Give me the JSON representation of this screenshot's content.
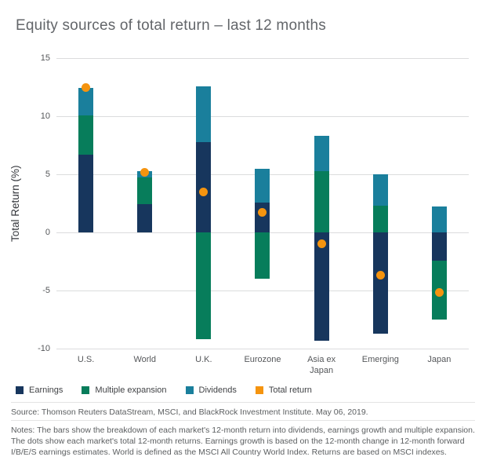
{
  "title": "Equity sources of total return – last 12 months",
  "chart_data": {
    "type": "bar",
    "stacked": true,
    "title": "Equity sources of total return – last 12 months",
    "ylabel": "Total Return (%)",
    "ylim": [
      -10,
      15
    ],
    "yticks": [
      15,
      10,
      5,
      0,
      -5,
      -10
    ],
    "grid": true,
    "legend_position": "bottom",
    "categories": [
      "U.S.",
      "World",
      "U.K.",
      "Eurozone",
      "Asia ex\nJapan",
      "Emerging",
      "Japan"
    ],
    "series": [
      {
        "name": "Earnings",
        "color": "#17365d",
        "values": [
          6.7,
          2.4,
          7.8,
          2.6,
          -9.3,
          -8.7,
          -2.4
        ]
      },
      {
        "name": "Multiple expansion",
        "color": "#077d5b",
        "values": [
          3.4,
          2.3,
          -9.2,
          -4.0,
          5.3,
          2.3,
          -5.1
        ]
      },
      {
        "name": "Dividends",
        "color": "#1a7f9c",
        "values": [
          2.3,
          0.6,
          4.8,
          2.9,
          3.0,
          2.7,
          2.2
        ]
      }
    ],
    "dots": {
      "name": "Total return",
      "color": "#f5940f",
      "values": [
        12.5,
        5.2,
        3.5,
        1.7,
        -1.0,
        -3.7,
        -5.2
      ]
    }
  },
  "legend": [
    {
      "label": "Earnings",
      "color": "#17365d",
      "shape": "square"
    },
    {
      "label": "Multiple expansion",
      "color": "#077d5b",
      "shape": "square"
    },
    {
      "label": "Dividends",
      "color": "#1a7f9c",
      "shape": "square"
    },
    {
      "label": "Total return",
      "color": "#f5940f",
      "shape": "square"
    }
  ],
  "source": "Source: Thomson Reuters DataStream, MSCI, and BlackRock Investment Institute. May 06, 2019.",
  "notes": "Notes: The bars show the breakdown of each market's 12-month return into dividends, earnings growth and multiple expansion. The dots show each market's total 12-month returns. Earnings growth is based on the 12-month change in 12-month forward I/B/E/S earnings estimates. World is defined as the MSCI All Country World Index. Returns are based on MSCI indexes."
}
